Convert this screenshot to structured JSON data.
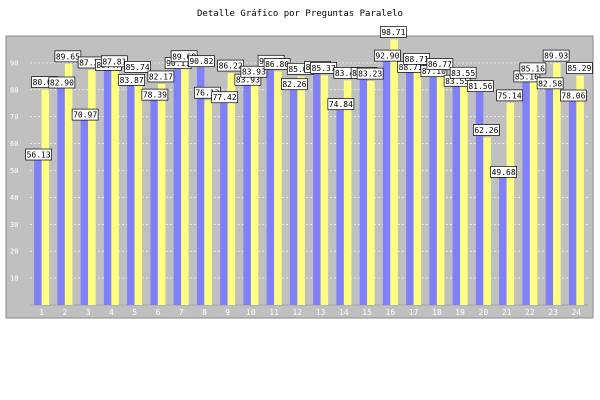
{
  "chart_data": {
    "type": "bar",
    "title": "Detalle Gráfico por Preguntas Paralelo",
    "xlabel": "",
    "ylabel": "",
    "ylim": [
      0,
      100
    ],
    "yticks": [
      10,
      20,
      30,
      40,
      50,
      60,
      70,
      80,
      90
    ],
    "grid": true,
    "colors": {
      "background": "#c0c0c0",
      "blue_bar": "#8080f8",
      "yellow_bar": "#ffff80",
      "label_box": "#ffffff"
    },
    "categories": [
      "1",
      "2",
      "3",
      "4",
      "5",
      "6",
      "7",
      "8",
      "9",
      "10",
      "11",
      "12",
      "13",
      "14",
      "15",
      "16",
      "17",
      "18",
      "19",
      "20",
      "21",
      "22",
      "23",
      "24"
    ],
    "series": [
      {
        "values": [
          56.13,
          82.9,
          70.97,
          89.47,
          83.87,
          78.39,
          90.11,
          90.82,
          77.42,
          83.93,
          90.97,
          82.26,
          88.71,
          74.84,
          86.43,
          92.9,
          88.71,
          87.1,
          83.55,
          81.56,
          49.68,
          85.16,
          82.58,
          78.06
        ]
      },
      {
        "values": [
          80.07,
          89.65,
          87.37,
          87.81,
          85.74,
          82.17,
          89.68,
          76.13,
          86.22,
          83.93,
          86.8,
          85.01,
          85.37,
          83.48,
          83.23,
          98.71,
          88.71,
          86.77,
          83.55,
          62.26,
          75.14,
          85.16,
          89.93,
          85.29
        ]
      }
    ]
  }
}
